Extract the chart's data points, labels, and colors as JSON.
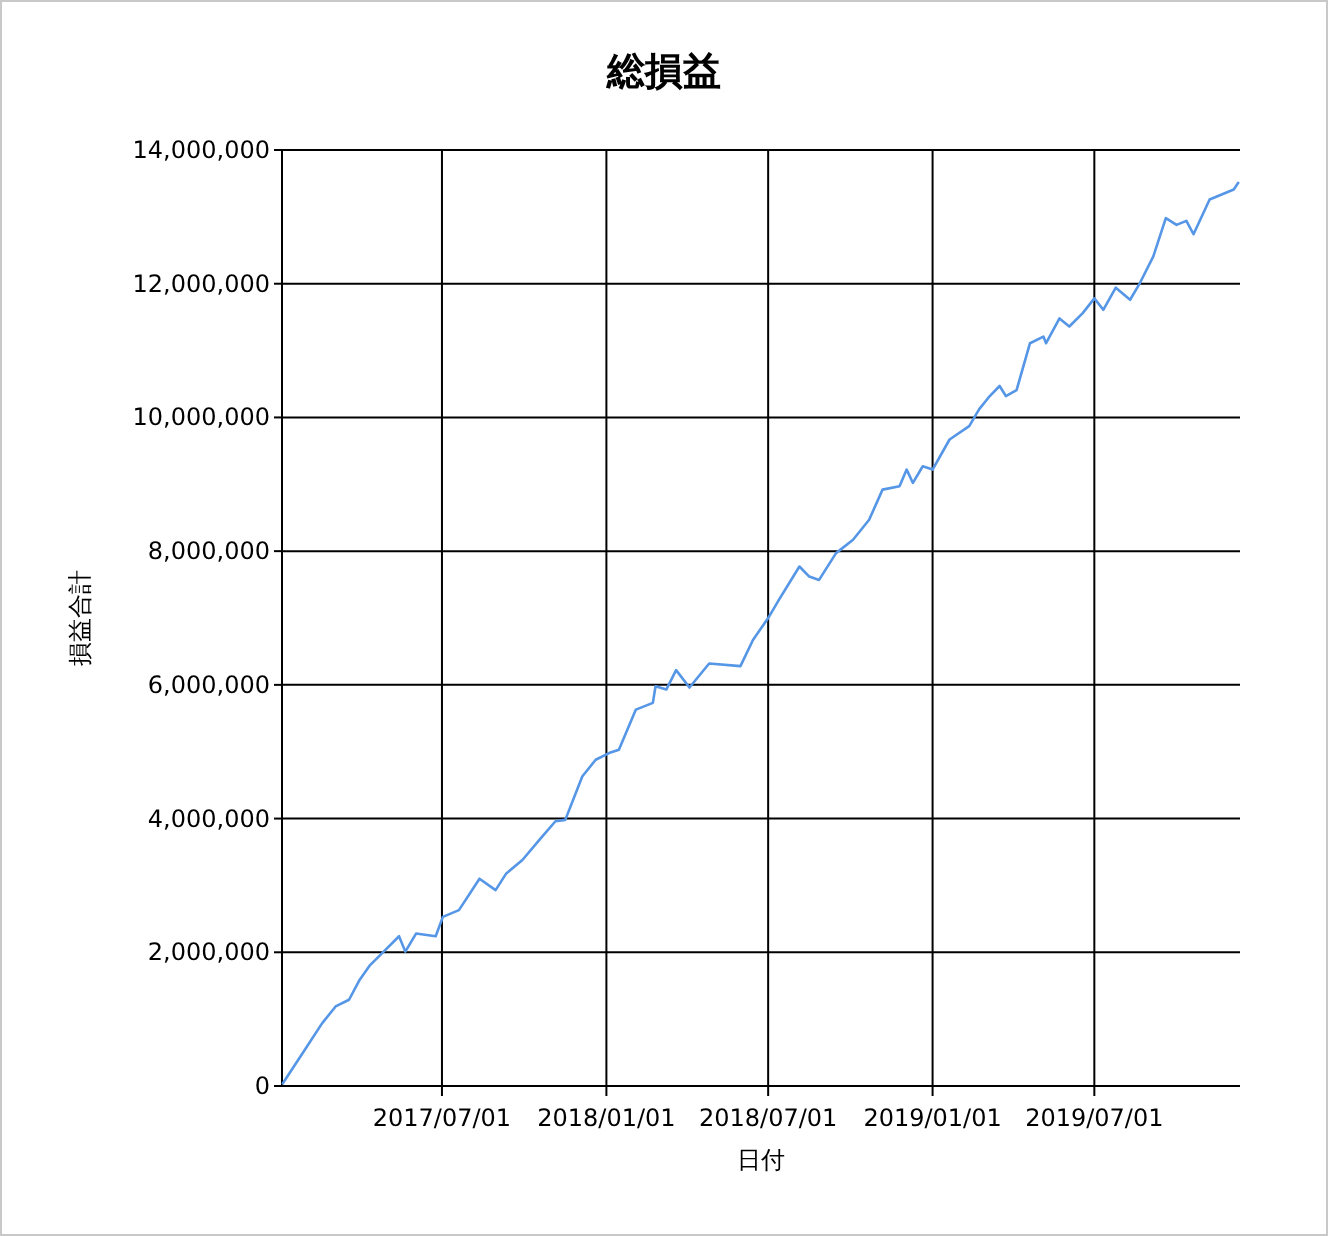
{
  "chart_data": {
    "type": "line",
    "title": "総損益",
    "xlabel": "日付",
    "ylabel": "損益合計",
    "xlim": [
      "2017-01-03",
      "2019-12-11"
    ],
    "ylim": [
      0,
      14000000
    ],
    "xticks": [
      {
        "value": "2017-07-01",
        "label": "2017/07/01"
      },
      {
        "value": "2018-01-01",
        "label": "2018/01/01"
      },
      {
        "value": "2018-07-01",
        "label": "2018/07/01"
      },
      {
        "value": "2019-01-01",
        "label": "2019/01/01"
      },
      {
        "value": "2019-07-01",
        "label": "2019/07/01"
      }
    ],
    "yticks": [
      0,
      {
        "value": 2000000,
        "label": "2,000,000"
      },
      {
        "value": 4000000,
        "label": "4,000,000"
      },
      {
        "value": 6000000,
        "label": "6,000,000"
      },
      {
        "value": 8000000,
        "label": "8,000,000"
      },
      {
        "value": 10000000,
        "label": "10,000,000"
      },
      {
        "value": 12000000,
        "label": "12,000,000"
      },
      {
        "value": 14000000,
        "label": "14,000,000"
      }
    ],
    "grid": true,
    "x": [
      "2017-01-04",
      "2017-01-26",
      "2017-02-17",
      "2017-03-04",
      "2017-03-19",
      "2017-03-31",
      "2017-04-11",
      "2017-04-29",
      "2017-05-14",
      "2017-05-21",
      "2017-06-02",
      "2017-06-24",
      "2017-07-02",
      "2017-07-20",
      "2017-08-12",
      "2017-08-30",
      "2017-09-11",
      "2017-09-29",
      "2017-10-18",
      "2017-11-05",
      "2017-11-16",
      "2017-12-05",
      "2017-12-20",
      "2018-01-04",
      "2018-01-15",
      "2018-02-03",
      "2018-02-22",
      "2018-02-25",
      "2018-03-09",
      "2018-03-20",
      "2018-04-04",
      "2018-04-26",
      "2018-05-31",
      "2018-06-14",
      "2018-07-02",
      "2018-07-13",
      "2018-08-05",
      "2018-08-16",
      "2018-08-27",
      "2018-09-15",
      "2018-10-04",
      "2018-10-22",
      "2018-11-06",
      "2018-11-25",
      "2018-12-03",
      "2018-12-10",
      "2018-12-21",
      "2019-01-01",
      "2019-01-20",
      "2019-02-11",
      "2019-02-22",
      "2019-03-06",
      "2019-03-17",
      "2019-03-24",
      "2019-04-05",
      "2019-04-20",
      "2019-05-05",
      "2019-05-08",
      "2019-05-23",
      "2019-06-03",
      "2019-06-18",
      "2019-07-01",
      "2019-07-11",
      "2019-07-25",
      "2019-08-10",
      "2019-08-21",
      "2019-09-05",
      "2019-09-19",
      "2019-10-01",
      "2019-10-12",
      "2019-10-20",
      "2019-11-07",
      "2019-12-04",
      "2019-12-09"
    ],
    "series": [
      {
        "color": "#5596e6",
        "values": [
          40000,
          490000,
          940000,
          1190000,
          1290000,
          1590000,
          1800000,
          2040000,
          2240000,
          2010000,
          2280000,
          2240000,
          2530000,
          2630000,
          3100000,
          2930000,
          3180000,
          3380000,
          3680000,
          3960000,
          3980000,
          4630000,
          4880000,
          4980000,
          5030000,
          5630000,
          5730000,
          5980000,
          5930000,
          6220000,
          5960000,
          6320000,
          6280000,
          6670000,
          7020000,
          7270000,
          7770000,
          7620000,
          7570000,
          7970000,
          8170000,
          8470000,
          8920000,
          8970000,
          9220000,
          9020000,
          9270000,
          9220000,
          9670000,
          9870000,
          10120000,
          10320000,
          10470000,
          10320000,
          10410000,
          11110000,
          11210000,
          11110000,
          11480000,
          11360000,
          11560000,
          11780000,
          11610000,
          11940000,
          11760000,
          12010000,
          12410000,
          12980000,
          12880000,
          12940000,
          12740000,
          13260000,
          13410000,
          13510000
        ]
      }
    ]
  }
}
